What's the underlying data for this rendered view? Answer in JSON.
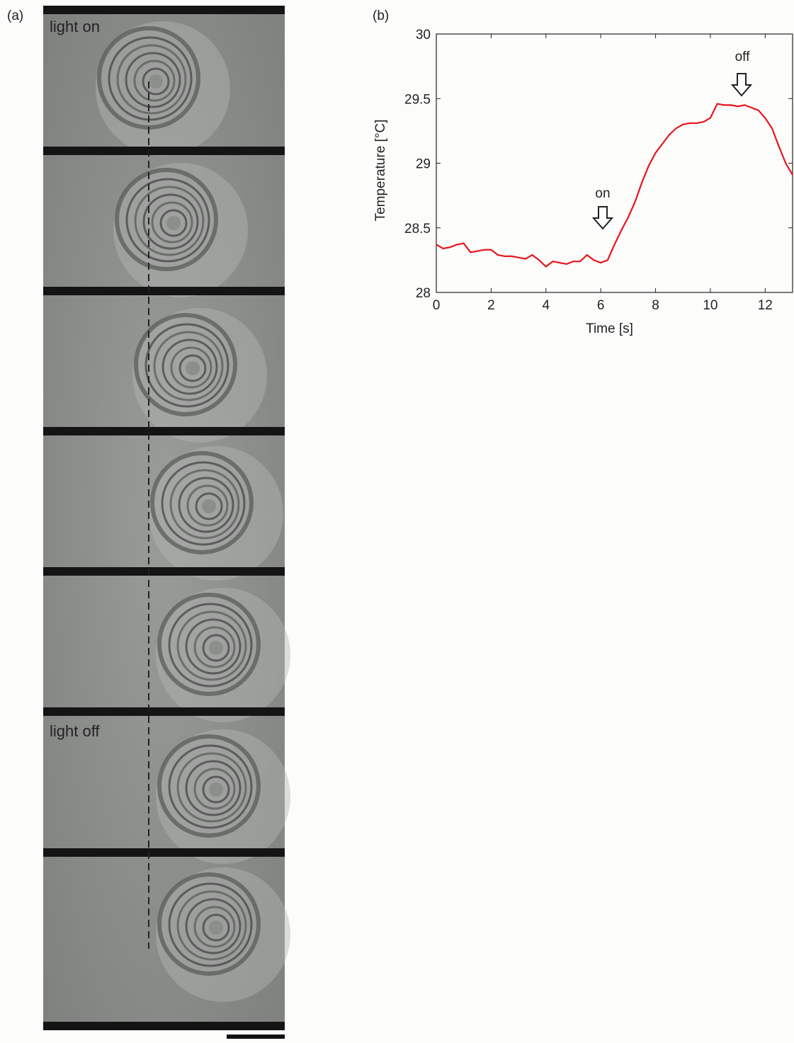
{
  "panel_a": {
    "label": "(a)",
    "annotations": [
      "light on",
      "light off"
    ]
  },
  "chart_data": {
    "type": "line",
    "label": "(b)",
    "x_label": "Time [s]",
    "y_label": "Temperature [°C]",
    "annotations": [
      "on",
      "off"
    ],
    "x": [
      0,
      0.25,
      0.5,
      0.75,
      1,
      1.25,
      1.5,
      1.75,
      2,
      2.25,
      2.5,
      2.75,
      3,
      3.25,
      3.5,
      3.75,
      4,
      4.25,
      4.5,
      4.75,
      5,
      5.25,
      5.5,
      5.75,
      6,
      6.25,
      6.5,
      6.75,
      7,
      7.25,
      7.5,
      7.75,
      8,
      8.25,
      8.5,
      8.75,
      9,
      9.25,
      9.5,
      9.75,
      10,
      10.25,
      10.5,
      10.75,
      11,
      11.25,
      11.5,
      11.75,
      12,
      12.25,
      12.5,
      12.75,
      13
    ],
    "series": [
      {
        "color": "#e8141c",
        "values": [
          28.37,
          28.34,
          28.35,
          28.37,
          28.38,
          28.31,
          28.32,
          28.33,
          28.33,
          28.29,
          28.28,
          28.28,
          28.27,
          28.26,
          28.29,
          28.25,
          28.2,
          28.24,
          28.23,
          28.22,
          28.24,
          28.24,
          28.29,
          28.25,
          28.23,
          28.25,
          28.37,
          28.48,
          28.58,
          28.7,
          28.85,
          28.98,
          29.08,
          29.15,
          29.22,
          29.27,
          29.3,
          29.31,
          29.31,
          29.32,
          29.35,
          29.46,
          29.45,
          29.45,
          29.44,
          29.45,
          29.43,
          29.41,
          29.35,
          29.27,
          29.13,
          29.0,
          28.91
        ]
      }
    ],
    "xlim": [
      0,
      13
    ],
    "xticks": [
      0,
      2,
      4,
      6,
      8,
      10,
      12
    ],
    "ylim": [
      28,
      30
    ],
    "yticks": [
      28,
      28.5,
      29,
      29.5,
      30
    ],
    "grid": false
  }
}
